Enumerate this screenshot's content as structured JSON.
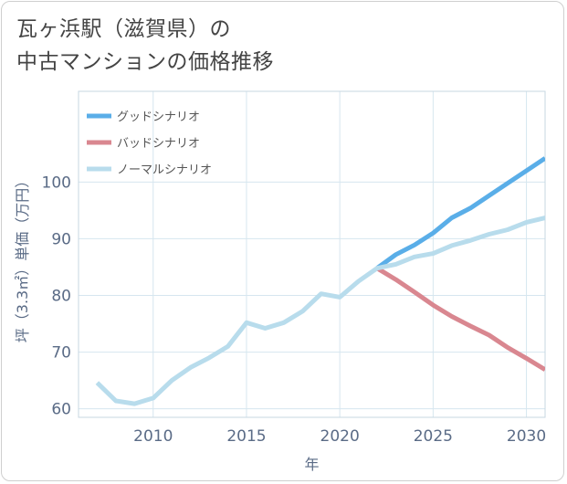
{
  "title_lines": [
    "瓦ヶ浜駅（滋賀県）の",
    "中古マンションの価格推移"
  ],
  "chart_data": {
    "type": "line",
    "xlabel": "年",
    "ylabel": "坪（3.3㎡）単価（万円）",
    "xlim": [
      2006,
      2031
    ],
    "ylim": [
      58.5,
      116
    ],
    "xticks": [
      2010,
      2015,
      2020,
      2025,
      2030
    ],
    "yticks": [
      60,
      70,
      80,
      90,
      100
    ],
    "grid": true,
    "legend_position": "top-left",
    "series": [
      {
        "name": "グッドシナリオ",
        "color": "#5aaee8",
        "x": [
          2022,
          2023,
          2024,
          2025,
          2026,
          2027,
          2028,
          2029,
          2030,
          2031
        ],
        "y": [
          84.8,
          87.2,
          88.9,
          91.0,
          93.7,
          95.4,
          97.6,
          99.8,
          102.0,
          104.2
        ]
      },
      {
        "name": "バッドシナリオ",
        "color": "#d98790",
        "x": [
          2022,
          2023,
          2024,
          2025,
          2026,
          2027,
          2028,
          2029,
          2030,
          2031
        ],
        "y": [
          84.8,
          82.8,
          80.6,
          78.3,
          76.3,
          74.6,
          73.0,
          70.8,
          68.9,
          66.9
        ]
      },
      {
        "name": "ノーマルシナリオ",
        "color": "#b8dcec",
        "x": [
          2007,
          2008,
          2009,
          2010,
          2011,
          2012,
          2013,
          2014,
          2015,
          2016,
          2017,
          2018,
          2019,
          2020,
          2021,
          2022,
          2023,
          2024,
          2025,
          2026,
          2027,
          2028,
          2029,
          2030,
          2031
        ],
        "y": [
          64.6,
          61.4,
          60.9,
          61.9,
          65.0,
          67.3,
          69.0,
          71.0,
          75.2,
          74.2,
          75.2,
          77.2,
          80.3,
          79.7,
          82.5,
          84.8,
          85.5,
          86.8,
          87.4,
          88.8,
          89.7,
          90.8,
          91.6,
          92.9,
          93.7
        ]
      }
    ]
  }
}
